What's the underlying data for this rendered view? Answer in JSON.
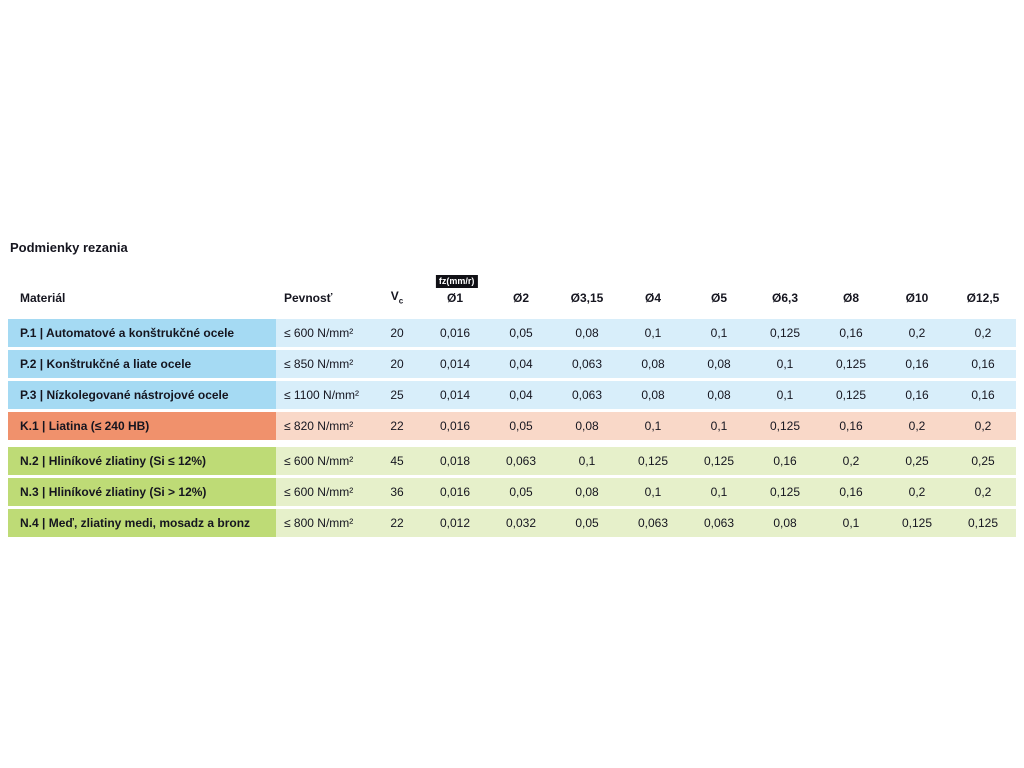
{
  "page": {
    "title": "Podmienky rezania"
  },
  "table": {
    "header": {
      "material": "Materiál",
      "pevnost": "Pevnosť",
      "vc_main": "V",
      "vc_sub": "c",
      "fz_badge": "fz(mm/r)",
      "dia": [
        "Ø1",
        "Ø2",
        "Ø3,15",
        "Ø4",
        "Ø5",
        "Ø6,3",
        "Ø8",
        "Ø10",
        "Ø12,5"
      ]
    },
    "colors": {
      "steel_strong": "#a5daf3",
      "steel_light": "#d8eefa",
      "iron_strong": "#f0916c",
      "iron_light": "#f9d8c8",
      "alu_strong": "#bedb76",
      "alu_light": "#e6f0ca",
      "badge_bg": "#101015",
      "text": "#15151f"
    },
    "rows": [
      {
        "material": "P.1 | Automatové a konštrukčné ocele",
        "pevnost": "≤ 600 N/mm²",
        "vc": "20",
        "values": [
          "0,016",
          "0,05",
          "0,08",
          "0,1",
          "0,1",
          "0,125",
          "0,16",
          "0,2",
          "0,2"
        ]
      },
      {
        "material": "P.2 | Konštrukčné a liate ocele",
        "pevnost": "≤ 850 N/mm²",
        "vc": "20",
        "values": [
          "0,014",
          "0,04",
          "0,063",
          "0,08",
          "0,08",
          "0,1",
          "0,125",
          "0,16",
          "0,16"
        ]
      },
      {
        "material": "P.3 | Nízkolegované nástrojové ocele",
        "pevnost": "≤ 1100 N/mm²",
        "vc": "25",
        "values": [
          "0,014",
          "0,04",
          "0,063",
          "0,08",
          "0,08",
          "0,1",
          "0,125",
          "0,16",
          "0,16"
        ]
      },
      {
        "material": "K.1 | Liatina (≤ 240 HB)",
        "pevnost": "≤ 820 N/mm²",
        "vc": "22",
        "values": [
          "0,016",
          "0,05",
          "0,08",
          "0,1",
          "0,1",
          "0,125",
          "0,16",
          "0,2",
          "0,2"
        ]
      },
      {
        "material": "N.2 | Hliníkové zliatiny (Si ≤ 12%)",
        "pevnost": "≤ 600 N/mm²",
        "vc": "45",
        "values": [
          "0,018",
          "0,063",
          "0,1",
          "0,125",
          "0,125",
          "0,16",
          "0,2",
          "0,25",
          "0,25"
        ]
      },
      {
        "material": "N.3 | Hliníkové zliatiny (Si > 12%)",
        "pevnost": "≤ 600 N/mm²",
        "vc": "36",
        "values": [
          "0,016",
          "0,05",
          "0,08",
          "0,1",
          "0,1",
          "0,125",
          "0,16",
          "0,2",
          "0,2"
        ]
      },
      {
        "material": "N.4 | Meď, zliatiny medi, mosadz a bronz",
        "pevnost": "≤ 800 N/mm²",
        "vc": "22",
        "values": [
          "0,012",
          "0,032",
          "0,05",
          "0,063",
          "0,063",
          "0,08",
          "0,1",
          "0,125",
          "0,125"
        ]
      }
    ]
  }
}
